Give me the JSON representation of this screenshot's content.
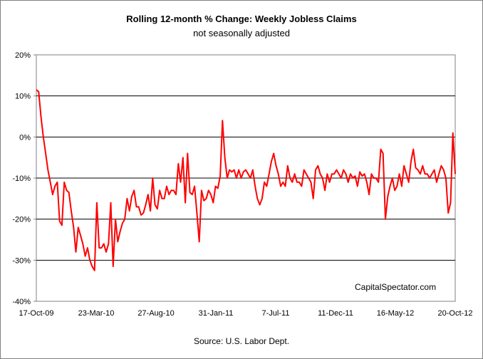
{
  "chart_data": {
    "type": "line",
    "title": "Rolling 12-month %  Change: Weekly Jobless Claims",
    "subtitle": "not seasonally adjusted",
    "source": "Source: U.S. Labor Dept.",
    "watermark": "CapitalSpectator.com",
    "xlabel": "",
    "ylabel": "",
    "ylim": [
      -40,
      20
    ],
    "yticks": [
      20,
      10,
      0,
      -10,
      -20,
      -30,
      -40
    ],
    "ytick_labels": [
      "20%",
      "10%",
      "0%",
      "-10%",
      "-20%",
      "-30%",
      "-40%"
    ],
    "xtick_labels": [
      "17-Oct-09",
      "23-Mar-10",
      "27-Aug-10",
      "31-Jan-11",
      "7-Jul-11",
      "11-Dec-11",
      "16-May-12",
      "20-Oct-12"
    ],
    "grid": "horizontal",
    "line_color": "#ff0000",
    "series": [
      {
        "values": [
          11.5,
          11,
          5,
          0,
          -4,
          -8,
          -11,
          -14,
          -12,
          -11,
          -20.5,
          -21.5,
          -11,
          -13,
          -13.5,
          -18,
          -22,
          -28,
          -22,
          -24,
          -26,
          -29,
          -27,
          -30,
          -31.5,
          -32.5,
          -16,
          -27,
          -27,
          -26,
          -28,
          -26,
          -16,
          -31.5,
          -20,
          -25.5,
          -23,
          -21,
          -20,
          -15,
          -18,
          -14.5,
          -13,
          -17,
          -17,
          -19,
          -18.5,
          -16.5,
          -14,
          -18,
          -10,
          -16.5,
          -17.5,
          -13,
          -15,
          -15,
          -12,
          -14,
          -13,
          -13,
          -14,
          -6.5,
          -11,
          -5,
          -16,
          -4,
          -13.5,
          -14,
          -12,
          -18.5,
          -25.5,
          -13,
          -15.5,
          -15,
          -13,
          -14,
          -16,
          -12,
          -12.5,
          -9.5,
          4,
          -5,
          -10,
          -8,
          -8.5,
          -8,
          -10,
          -8,
          -10,
          -8.5,
          -8,
          -9,
          -10,
          -8,
          -12,
          -15,
          -16.5,
          -15,
          -11,
          -12,
          -9,
          -6,
          -4,
          -7,
          -9,
          -12,
          -11,
          -12,
          -7,
          -10,
          -11,
          -9,
          -11,
          -11,
          -12,
          -8,
          -9,
          -10,
          -11,
          -15,
          -8,
          -7,
          -9,
          -10,
          -13,
          -9,
          -11,
          -9,
          -9,
          -8,
          -9,
          -10,
          -8,
          -9,
          -11,
          -9,
          -10,
          -9.5,
          -12,
          -8.5,
          -9.5,
          -9,
          -11,
          -14,
          -9,
          -10,
          -10,
          -11,
          -3,
          -4,
          -20,
          -14.5,
          -12,
          -10,
          -13,
          -12,
          -9,
          -12,
          -7,
          -9,
          -11,
          -6,
          -3,
          -7.5,
          -8,
          -9,
          -7,
          -9,
          -9,
          -10,
          -9,
          -8,
          -11,
          -9,
          -7,
          -8,
          -10,
          -18.5,
          -16,
          1,
          -9
        ]
      }
    ]
  }
}
